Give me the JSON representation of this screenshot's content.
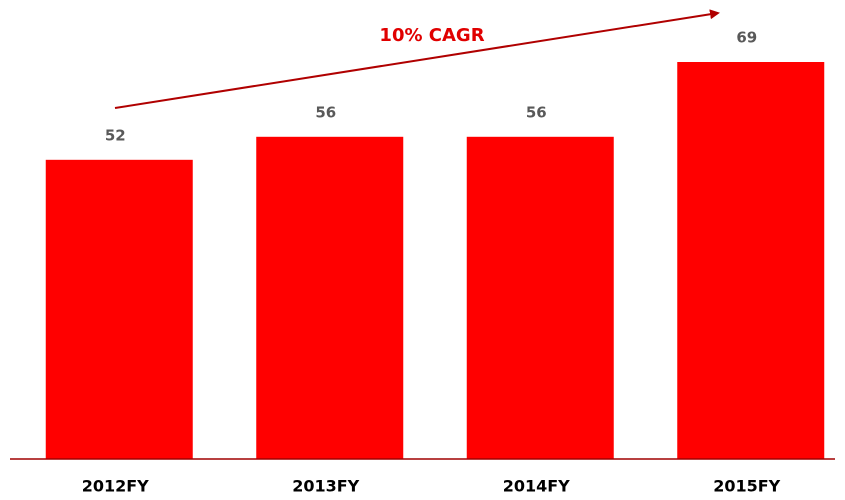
{
  "chart_data": {
    "type": "bar",
    "annotation": "10% CAGR",
    "categories": [
      "2012FY",
      "2013FY",
      "2014FY",
      "2015FY"
    ],
    "values": [
      52,
      56,
      56,
      69
    ],
    "color": "#ff0000"
  }
}
